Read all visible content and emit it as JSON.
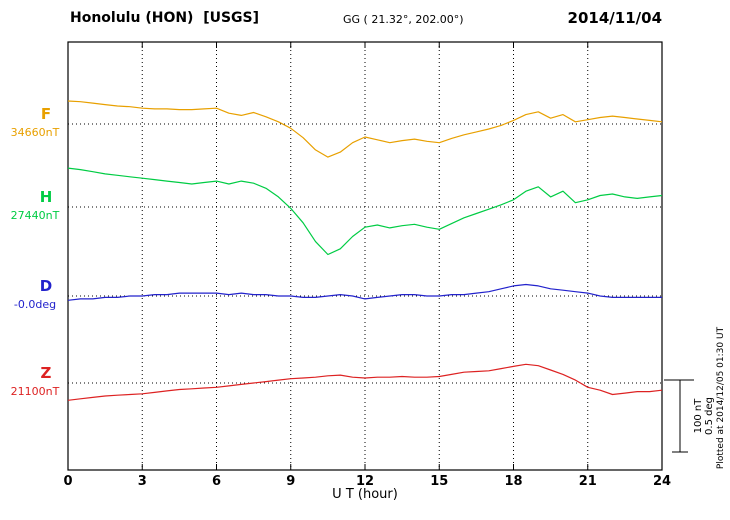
{
  "header": {
    "station": "Honolulu (HON)  [USGS]",
    "coords": "GG ( 21.32°, 202.00°)",
    "date": "2014/11/04"
  },
  "side": {
    "scale_label_nt": "100 nT",
    "scale_label_deg": "0.5 deg",
    "plotted_at": "Plotted at 2014/12/05 01:30 UT"
  },
  "chart_data": {
    "type": "line",
    "title": "Honolulu (HON) [USGS] magnetogram",
    "date": "2014/11/04",
    "xlabel": "U T (hour)",
    "x_range": [
      0,
      24
    ],
    "xticks": [
      0,
      3,
      6,
      9,
      12,
      15,
      18,
      21,
      24
    ],
    "x_start": 0,
    "x_step_hours": 0.5,
    "grid": "dotted vertical lines every 3 h; dotted horizontal baseline per component",
    "legend_position": "left outside, one colored label per component",
    "scale_bar": {
      "nT_per_bar": 100,
      "deg_per_bar": 0.5
    },
    "series": [
      {
        "name": "F",
        "color": "#e8a000",
        "unit": "nT",
        "baseline": 34660,
        "baseline_label": "34660nT",
        "offsets_from_baseline": [
          32,
          31,
          29,
          27,
          25,
          24,
          22,
          21,
          21,
          20,
          20,
          21,
          22,
          15,
          12,
          16,
          10,
          3,
          -6,
          -19,
          -36,
          -46,
          -39,
          -26,
          -18,
          -22,
          -26,
          -23,
          -21,
          -24,
          -26,
          -20,
          -15,
          -11,
          -7,
          -2,
          5,
          13,
          17,
          8,
          13,
          3,
          6,
          9,
          11,
          9,
          7,
          5,
          3
        ]
      },
      {
        "name": "H",
        "color": "#00cc44",
        "unit": "nT",
        "baseline": 27440,
        "baseline_label": "27440nT",
        "offsets_from_baseline": [
          54,
          52,
          49,
          46,
          44,
          42,
          40,
          38,
          36,
          34,
          32,
          34,
          36,
          32,
          36,
          33,
          26,
          14,
          -2,
          -22,
          -48,
          -66,
          -58,
          -41,
          -28,
          -25,
          -29,
          -26,
          -24,
          -28,
          -31,
          -23,
          -15,
          -9,
          -3,
          3,
          10,
          22,
          28,
          14,
          22,
          6,
          10,
          16,
          18,
          14,
          12,
          14,
          16
        ]
      },
      {
        "name": "D",
        "color": "#2222cc",
        "unit": "deg",
        "baseline": 0,
        "baseline_label": "-0.0deg",
        "offsets_from_baseline": [
          -0.03,
          -0.02,
          -0.02,
          -0.01,
          -0.01,
          0,
          0,
          0.01,
          0.01,
          0.02,
          0.02,
          0.02,
          0.02,
          0.01,
          0.02,
          0.01,
          0.01,
          0,
          0,
          -0.01,
          -0.01,
          0,
          0.01,
          0,
          -0.02,
          -0.01,
          0,
          0.01,
          0.01,
          0,
          0,
          0.01,
          0.01,
          0.02,
          0.03,
          0.05,
          0.07,
          0.08,
          0.07,
          0.05,
          0.04,
          0.03,
          0.02,
          0,
          -0.01,
          -0.01,
          -0.01,
          -0.01,
          -0.01
        ]
      },
      {
        "name": "Z",
        "color": "#dd2222",
        "unit": "nT",
        "baseline": 21100,
        "baseline_label": "21100nT",
        "offsets_from_baseline": [
          -24,
          -22,
          -20,
          -18,
          -17,
          -16,
          -15,
          -13,
          -11,
          -9,
          -8,
          -7,
          -6,
          -4,
          -2,
          0,
          2,
          4,
          6,
          7,
          8,
          10,
          11,
          8,
          7,
          8,
          8,
          9,
          8,
          8,
          9,
          12,
          15,
          16,
          17,
          20,
          23,
          26,
          24,
          18,
          12,
          4,
          -6,
          -10,
          -16,
          -14,
          -12,
          -12,
          -10
        ]
      }
    ]
  }
}
